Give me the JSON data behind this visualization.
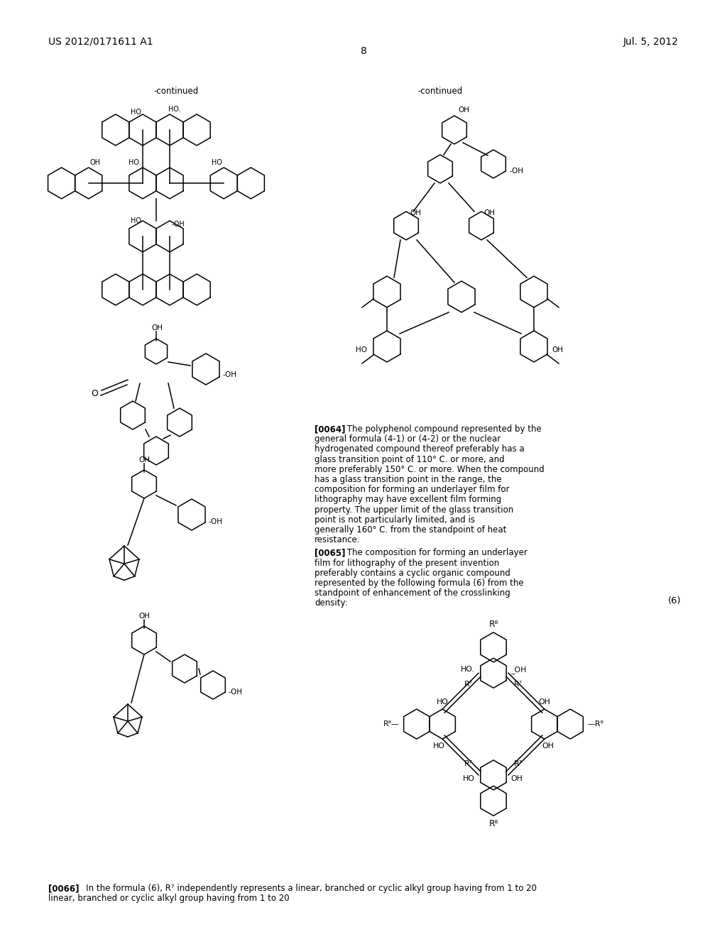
{
  "page_number": "8",
  "patent_number": "US 2012/0171611 A1",
  "patent_date": "Jul. 5, 2012",
  "background_color": "#ffffff",
  "text_color": "#000000",
  "line_color": "#000000",
  "continued_left": "-continued",
  "continued_right": "-continued",
  "para_0064_bold": "[0064]",
  "para_0064_text": "   The polyphenol compound represented by the general formula (4-1) or (4-2) or the nuclear hydrogenated compound thereof preferably has a glass transition point of 110° C. or more, and more preferably 150° C. or more. When the compound has a glass transition point in the range, the composition for forming an underlayer film for lithography may have excellent film forming property. The upper limit of the glass transition point is not particularly limited, and is generally 160° C. from the standpoint of heat resistance.",
  "para_0065_bold": "[0065]",
  "para_0065_text": "   The composition for forming an underlayer film for lithography of the present invention preferably contains a cyclic organic compound represented by the following formula (6) from the standpoint of enhancement of the crosslinking density:",
  "formula_label": "(6)",
  "para_0066_bold": "[0066]",
  "para_0066_text": "   In the formula (6), R⁷ independently represents a linear, branched or cyclic alkyl group having from 1 to 20"
}
